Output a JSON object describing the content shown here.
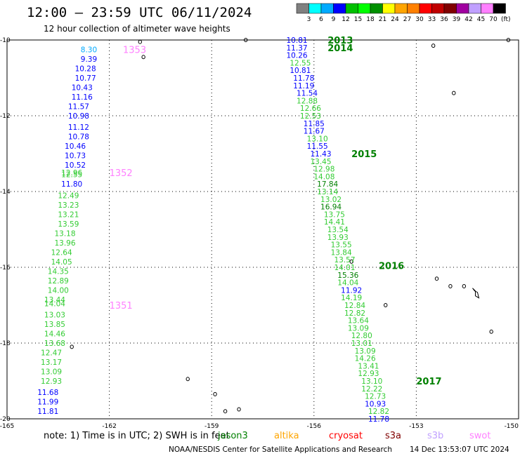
{
  "header": {
    "title": "12:00 – 23:59 UTC 06/11/2024",
    "subtitle": "12 hour collection of altimeter wave heights"
  },
  "color_scale": {
    "values": [
      "3",
      "6",
      "9",
      "12",
      "15",
      "18",
      "21",
      "24",
      "27",
      "30",
      "33",
      "36",
      "39",
      "42",
      "45",
      "70"
    ],
    "unit": "(ft)",
    "colors": [
      "#808080",
      "#00ffff",
      "#00aaff",
      "#0000ff",
      "#00c000",
      "#00ff00",
      "#009000",
      "#ffff00",
      "#ffa500",
      "#ff8000",
      "#ff0000",
      "#c00000",
      "#800000",
      "#a000a0",
      "#c0a0ff",
      "#ff80ff",
      "#000000"
    ]
  },
  "footer": {
    "note": "note:  1) Time is in UTC; 2) SWH is in feet",
    "credit": "NOAA/NESDIS Center for Satellite Applications and Research",
    "timestamp": "14 Dec 13:53:07 UTC 2024"
  },
  "legend_missions": [
    {
      "name": "jason3",
      "color": "#008000"
    },
    {
      "name": "altika",
      "color": "#ffa500"
    },
    {
      "name": "cryosat",
      "color": "#ff0000"
    },
    {
      "name": "s3a",
      "color": "#800000"
    },
    {
      "name": "s3b",
      "color": "#c0a0ff"
    },
    {
      "name": "swot",
      "color": "#ff80ff"
    }
  ],
  "chart_data": {
    "type": "scatter",
    "title": "12:00 – 23:59 UTC 06/11/2024",
    "subtitle": "12 hour collection of altimeter wave heights",
    "xlim": [
      -165,
      -150
    ],
    "ylim": [
      -20,
      -10
    ],
    "x_ticks": [
      "-165",
      "-162",
      "-159",
      "-156",
      "-153",
      "-150"
    ],
    "y_ticks": [
      "-10",
      "-12",
      "-14",
      "-16",
      "-18",
      "-20"
    ],
    "pass_labels": [
      {
        "text": "1353",
        "lon": -161.6,
        "lat": -10.25,
        "color": "#ff80ff"
      },
      {
        "text": "1352",
        "lon": -162.0,
        "lat": -13.5,
        "color": "#ff80ff"
      },
      {
        "text": "1351",
        "lon": -162.0,
        "lat": -17.0,
        "color": "#ff80ff"
      },
      {
        "text": "2013",
        "lon": -155.6,
        "lat": -10.0,
        "color": "#008000"
      },
      {
        "text": "2014",
        "lon": -155.6,
        "lat": -10.2,
        "color": "#008000"
      },
      {
        "text": "2015",
        "lon": -154.9,
        "lat": -13.0,
        "color": "#008000"
      },
      {
        "text": "2016",
        "lon": -154.1,
        "lat": -15.95,
        "color": "#008000"
      },
      {
        "text": "2017",
        "lon": -153.0,
        "lat": -19.0,
        "color": "#008000"
      }
    ],
    "series": [
      {
        "name": "1351",
        "color": "#ff80ff",
        "points": [
          {
            "lon": -162.6,
            "lat": -10.25,
            "swh": "8.30"
          },
          {
            "lon": -162.6,
            "lat": -10.5,
            "swh": "9.39"
          },
          {
            "lon": -162.7,
            "lat": -10.75,
            "swh": "10.28"
          },
          {
            "lon": -162.7,
            "lat": -11.0,
            "swh": "10.77"
          },
          {
            "lon": -162.8,
            "lat": -11.25,
            "swh": "10.43"
          },
          {
            "lon": -162.8,
            "lat": -11.5,
            "swh": "11.16"
          },
          {
            "lon": -162.9,
            "lat": -11.75,
            "swh": "11.57"
          },
          {
            "lon": -162.9,
            "lat": -12.0,
            "swh": "10.98"
          },
          {
            "lon": -162.9,
            "lat": -12.3,
            "swh": "11.12"
          },
          {
            "lon": -162.9,
            "lat": -12.55,
            "swh": "10.78"
          },
          {
            "lon": -163.0,
            "lat": -12.8,
            "swh": "10.46"
          },
          {
            "lon": -163.0,
            "lat": -13.05,
            "swh": "10.73"
          },
          {
            "lon": -163.0,
            "lat": -13.3,
            "swh": "10.52"
          },
          {
            "lon": -163.1,
            "lat": -13.5,
            "swh": "12.96"
          },
          {
            "lon": -163.1,
            "lat": -13.55,
            "swh": "12.55"
          },
          {
            "lon": -163.1,
            "lat": -13.8,
            "swh": "11.80"
          },
          {
            "lon": -163.2,
            "lat": -14.1,
            "swh": "12.49"
          },
          {
            "lon": -163.2,
            "lat": -14.35,
            "swh": "13.23"
          },
          {
            "lon": -163.2,
            "lat": -14.6,
            "swh": "13.21"
          },
          {
            "lon": -163.2,
            "lat": -14.85,
            "swh": "13.59"
          },
          {
            "lon": -163.3,
            "lat": -15.1,
            "swh": "13.18"
          },
          {
            "lon": -163.3,
            "lat": -15.35,
            "swh": "13.96"
          },
          {
            "lon": -163.4,
            "lat": -15.6,
            "swh": "12.64"
          },
          {
            "lon": -163.4,
            "lat": -15.85,
            "swh": "14.05"
          },
          {
            "lon": -163.5,
            "lat": -16.1,
            "swh": "14.35"
          },
          {
            "lon": -163.5,
            "lat": -16.35,
            "swh": "12.89"
          },
          {
            "lon": -163.5,
            "lat": -16.6,
            "swh": "14.00"
          },
          {
            "lon": -163.6,
            "lat": -16.85,
            "swh": "13.44"
          },
          {
            "lon": -163.6,
            "lat": -16.95,
            "swh": "14.04"
          },
          {
            "lon": -163.6,
            "lat": -17.25,
            "swh": "13.03"
          },
          {
            "lon": -163.6,
            "lat": -17.5,
            "swh": "13.85"
          },
          {
            "lon": -163.6,
            "lat": -17.75,
            "swh": "14.46"
          },
          {
            "lon": -163.6,
            "lat": -18.0,
            "swh": "13.68"
          },
          {
            "lon": -163.7,
            "lat": -18.25,
            "swh": "12.47"
          },
          {
            "lon": -163.7,
            "lat": -18.5,
            "swh": "13.17"
          },
          {
            "lon": -163.7,
            "lat": -18.75,
            "swh": "13.09"
          },
          {
            "lon": -163.7,
            "lat": -19.0,
            "swh": "12.93"
          },
          {
            "lon": -163.8,
            "lat": -19.3,
            "swh": "11.68"
          },
          {
            "lon": -163.8,
            "lat": -19.55,
            "swh": "11.99"
          },
          {
            "lon": -163.8,
            "lat": -19.8,
            "swh": "11.81"
          }
        ]
      },
      {
        "name": "2013-2017",
        "color": "#008000",
        "points": [
          {
            "lon": -156.5,
            "lat": -10.0,
            "swh": "10.81"
          },
          {
            "lon": -156.5,
            "lat": -10.2,
            "swh": "11.37"
          },
          {
            "lon": -156.5,
            "lat": -10.4,
            "swh": "10.26"
          },
          {
            "lon": -156.4,
            "lat": -10.6,
            "swh": "12.55"
          },
          {
            "lon": -156.4,
            "lat": -10.8,
            "swh": "10.81"
          },
          {
            "lon": -156.3,
            "lat": -11.0,
            "swh": "11.78"
          },
          {
            "lon": -156.3,
            "lat": -11.2,
            "swh": "11.19"
          },
          {
            "lon": -156.2,
            "lat": -11.4,
            "swh": "11.54"
          },
          {
            "lon": -156.2,
            "lat": -11.6,
            "swh": "12.88"
          },
          {
            "lon": -156.1,
            "lat": -11.8,
            "swh": "12.66"
          },
          {
            "lon": -156.1,
            "lat": -12.0,
            "swh": "12.53"
          },
          {
            "lon": -156.0,
            "lat": -12.2,
            "swh": "11.85"
          },
          {
            "lon": -156.0,
            "lat": -12.4,
            "swh": "11.67"
          },
          {
            "lon": -155.9,
            "lat": -12.6,
            "swh": "13.10"
          },
          {
            "lon": -155.9,
            "lat": -12.8,
            "swh": "11.55"
          },
          {
            "lon": -155.8,
            "lat": -13.0,
            "swh": "11.43"
          },
          {
            "lon": -155.8,
            "lat": -13.2,
            "swh": "13.45"
          },
          {
            "lon": -155.7,
            "lat": -13.4,
            "swh": "12.98"
          },
          {
            "lon": -155.7,
            "lat": -13.6,
            "swh": "14.08"
          },
          {
            "lon": -155.6,
            "lat": -13.8,
            "swh": "17.84"
          },
          {
            "lon": -155.6,
            "lat": -14.0,
            "swh": "13.14"
          },
          {
            "lon": -155.5,
            "lat": -14.2,
            "swh": "13.02"
          },
          {
            "lon": -155.5,
            "lat": -14.4,
            "swh": "16.94"
          },
          {
            "lon": -155.4,
            "lat": -14.6,
            "swh": "13.75"
          },
          {
            "lon": -155.4,
            "lat": -14.8,
            "swh": "14.41"
          },
          {
            "lon": -155.3,
            "lat": -15.0,
            "swh": "13.54"
          },
          {
            "lon": -155.3,
            "lat": -15.2,
            "swh": "13.93"
          },
          {
            "lon": -155.2,
            "lat": -15.4,
            "swh": "13.55"
          },
          {
            "lon": -155.2,
            "lat": -15.6,
            "swh": "13.84"
          },
          {
            "lon": -155.1,
            "lat": -15.8,
            "swh": "13.57"
          },
          {
            "lon": -155.1,
            "lat": -16.0,
            "swh": "14.01"
          },
          {
            "lon": -155.0,
            "lat": -16.2,
            "swh": "15.36"
          },
          {
            "lon": -155.0,
            "lat": -16.4,
            "swh": "14.04"
          },
          {
            "lon": -154.9,
            "lat": -16.6,
            "swh": "11.92"
          },
          {
            "lon": -154.9,
            "lat": -16.8,
            "swh": "14.19"
          },
          {
            "lon": -154.8,
            "lat": -17.0,
            "swh": "12.84"
          },
          {
            "lon": -154.8,
            "lat": -17.2,
            "swh": "12.82"
          },
          {
            "lon": -154.7,
            "lat": -17.4,
            "swh": "13.64"
          },
          {
            "lon": -154.7,
            "lat": -17.6,
            "swh": "13.09"
          },
          {
            "lon": -154.6,
            "lat": -17.8,
            "swh": "12.80"
          },
          {
            "lon": -154.6,
            "lat": -18.0,
            "swh": "13.01"
          },
          {
            "lon": -154.5,
            "lat": -18.2,
            "swh": "13.09"
          },
          {
            "lon": -154.5,
            "lat": -18.4,
            "swh": "14.26"
          },
          {
            "lon": -154.4,
            "lat": -18.6,
            "swh": "13.41"
          },
          {
            "lon": -154.4,
            "lat": -18.8,
            "swh": "12.93"
          },
          {
            "lon": -154.3,
            "lat": -19.0,
            "swh": "13.10"
          },
          {
            "lon": -154.3,
            "lat": -19.2,
            "swh": "12.22"
          },
          {
            "lon": -154.2,
            "lat": -19.4,
            "swh": "12.73"
          },
          {
            "lon": -154.2,
            "lat": -19.6,
            "swh": "10.93"
          },
          {
            "lon": -154.1,
            "lat": -19.8,
            "swh": "12.82"
          },
          {
            "lon": -154.1,
            "lat": -20.0,
            "swh": "11.78"
          }
        ]
      }
    ]
  }
}
